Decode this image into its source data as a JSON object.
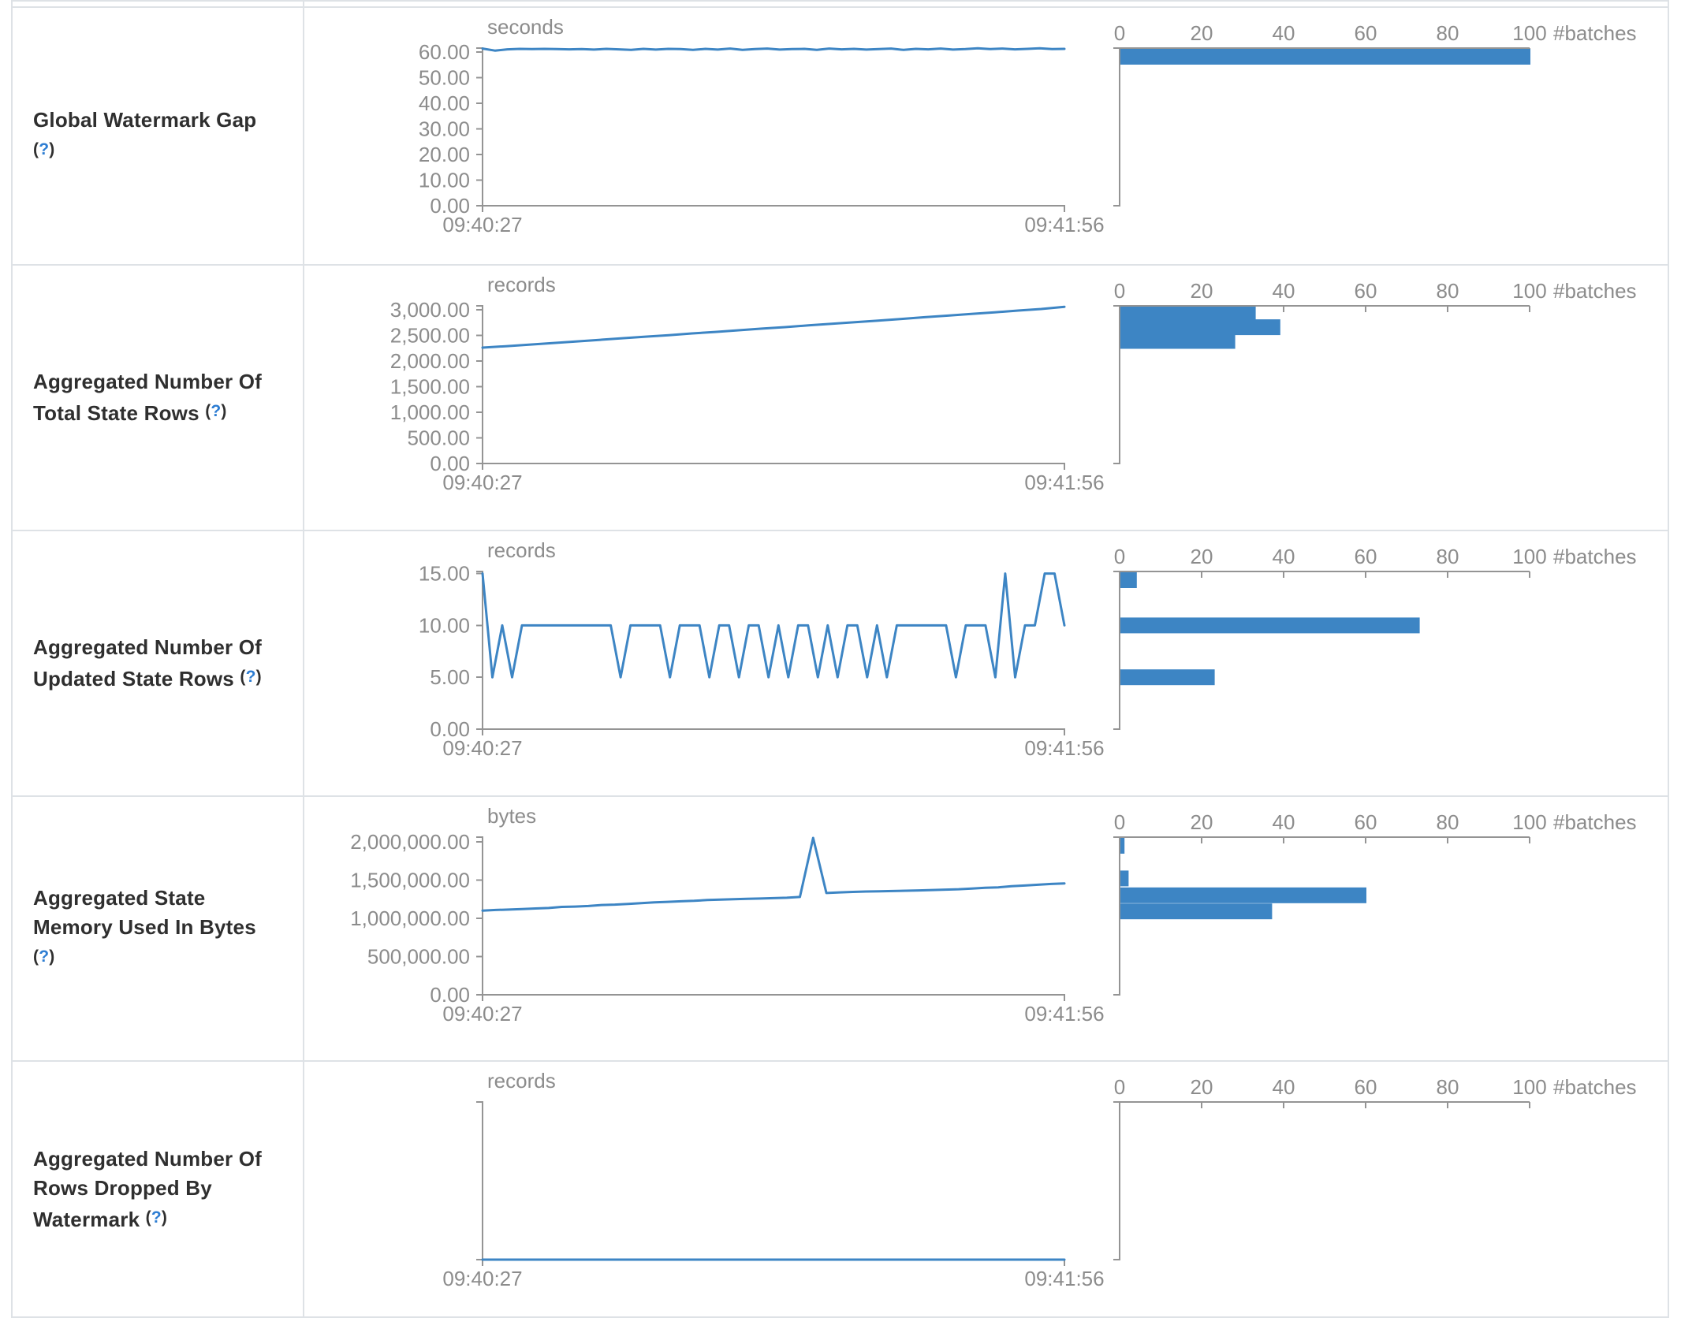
{
  "ui": {
    "help_open": "(",
    "help_q": "?",
    "help_close": ")"
  },
  "theme": {
    "line_color": "#3d85c4",
    "bar_color": "#3d85c4",
    "axis_color": "#949494",
    "chart_text_color": "#8c8c8c",
    "border_color": "#dee2e6",
    "label_color": "#2f2f2f",
    "help_blue": "#2d7dd2"
  },
  "rows": [
    {
      "label": "Global Watermark Gap"
    },
    {
      "label": "Aggregated Number Of Total State Rows"
    },
    {
      "label": "Aggregated Number Of Updated State Rows"
    },
    {
      "label": "Aggregated State Memory Used In Bytes"
    },
    {
      "label": "Aggregated Number Of Rows Dropped By Watermark"
    }
  ],
  "chart_data": [
    {
      "type": "line",
      "title": "Global Watermark Gap",
      "unit": "seconds",
      "x_start": "09:40:27",
      "x_end": "09:41:56",
      "ymax": 61.6,
      "yticks": [
        {
          "v": 60,
          "label": "60.00"
        },
        {
          "v": 50,
          "label": "50.00"
        },
        {
          "v": 40,
          "label": "40.00"
        },
        {
          "v": 30,
          "label": "30.00"
        },
        {
          "v": 20,
          "label": "20.00"
        },
        {
          "v": 10,
          "label": "10.00"
        },
        {
          "v": 0,
          "label": "0.00"
        }
      ],
      "line": [
        61.4,
        60.6,
        61.1,
        61.3,
        61.2,
        61.3,
        61.2,
        61.1,
        61.2,
        61.0,
        61.3,
        61.1,
        60.9,
        61.3,
        61.0,
        61.3,
        61.2,
        60.9,
        61.3,
        61.0,
        61.4,
        60.9,
        61.2,
        61.4,
        61.0,
        61.2,
        61.3,
        60.9,
        61.4,
        61.1,
        61.3,
        61.0,
        61.2,
        61.4,
        60.9,
        61.3,
        61.1,
        61.4,
        61.0,
        61.2,
        61.5,
        61.2,
        61.4,
        61.1,
        61.3,
        61.5,
        61.2,
        61.3
      ],
      "hist_axis": {
        "min": 0,
        "max": 100,
        "ticks": [
          0,
          20,
          40,
          60,
          80,
          100
        ],
        "label": "#batches"
      },
      "hist": [
        {
          "level": 61.2,
          "count": 100
        }
      ]
    },
    {
      "type": "line",
      "title": "Aggregated Number Of Total State Rows",
      "unit": "records",
      "x_start": "09:40:27",
      "x_end": "09:41:56",
      "ymax": 3077,
      "yticks": [
        {
          "v": 3000,
          "label": "3,000.00"
        },
        {
          "v": 2500,
          "label": "2,500.00"
        },
        {
          "v": 2000,
          "label": "2,000.00"
        },
        {
          "v": 1500,
          "label": "1,500.00"
        },
        {
          "v": 1000,
          "label": "1,000.00"
        },
        {
          "v": 500,
          "label": "500.00"
        },
        {
          "v": 0,
          "label": "0.00"
        }
      ],
      "line": [
        2262,
        2290,
        2318,
        2350,
        2380,
        2412,
        2444,
        2476,
        2505,
        2538,
        2568,
        2600,
        2632,
        2662,
        2695,
        2726,
        2758,
        2790,
        2822,
        2855,
        2886,
        2920,
        2950,
        2984,
        3016,
        3058
      ],
      "hist_axis": {
        "min": 0,
        "max": 100,
        "ticks": [
          0,
          20,
          40,
          60,
          80,
          100
        ],
        "label": "#batches"
      },
      "hist": [
        {
          "level": 2927,
          "count": 33
        },
        {
          "level": 2660,
          "count": 39
        },
        {
          "level": 2393,
          "count": 28
        }
      ]
    },
    {
      "type": "line",
      "title": "Aggregated Number Of Updated State Rows",
      "unit": "records",
      "x_start": "09:40:27",
      "x_end": "09:41:56",
      "ymax": 15.2,
      "yticks": [
        {
          "v": 15,
          "label": "15.00"
        },
        {
          "v": 10,
          "label": "10.00"
        },
        {
          "v": 5,
          "label": "5.00"
        },
        {
          "v": 0,
          "label": "0.00"
        }
      ],
      "line": [
        15,
        5,
        10,
        5,
        10,
        10,
        10,
        10,
        10,
        10,
        10,
        10,
        10,
        10,
        5,
        10,
        10,
        10,
        10,
        5,
        10,
        10,
        10,
        5,
        10,
        10,
        5,
        10,
        10,
        5,
        10,
        5,
        10,
        10,
        5,
        10,
        5,
        10,
        10,
        5,
        10,
        5,
        10,
        10,
        10,
        10,
        10,
        10,
        5,
        10,
        10,
        10,
        5,
        15,
        5,
        10,
        10,
        15,
        15,
        10
      ],
      "hist_axis": {
        "min": 0,
        "max": 100,
        "ticks": [
          0,
          20,
          40,
          60,
          80,
          100
        ],
        "label": "#batches"
      },
      "hist": [
        {
          "level": 15,
          "count": 4
        },
        {
          "level": 10,
          "count": 73
        },
        {
          "level": 5,
          "count": 23
        }
      ]
    },
    {
      "type": "line",
      "title": "Aggregated State Memory Used In Bytes",
      "unit": "bytes",
      "x_start": "09:40:27",
      "x_end": "09:41:56",
      "ymax": 2060000,
      "yticks": [
        {
          "v": 2000000,
          "label": "2,000,000.00"
        },
        {
          "v": 1500000,
          "label": "1,500,000.00"
        },
        {
          "v": 1000000,
          "label": "1,000,000.00"
        },
        {
          "v": 500000,
          "label": "500,000.00"
        },
        {
          "v": 0,
          "label": "0.00"
        }
      ],
      "line": [
        1100000,
        1108000,
        1113000,
        1120000,
        1128000,
        1134000,
        1148000,
        1153000,
        1160000,
        1173000,
        1178000,
        1188000,
        1198000,
        1208000,
        1214000,
        1222000,
        1228000,
        1238000,
        1243000,
        1248000,
        1253000,
        1258000,
        1263000,
        1268000,
        1278000,
        2050000,
        1330000,
        1338000,
        1344000,
        1349000,
        1351000,
        1355000,
        1360000,
        1364000,
        1369000,
        1374000,
        1379000,
        1388000,
        1398000,
        1404000,
        1418000,
        1428000,
        1438000,
        1448000,
        1455000
      ],
      "hist_axis": {
        "min": 0,
        "max": 100,
        "ticks": [
          0,
          20,
          40,
          60,
          80,
          100
        ],
        "label": "#batches"
      },
      "hist": [
        {
          "level": 2050000,
          "count": 1
        },
        {
          "level": 1520000,
          "count": 2
        },
        {
          "level": 1300000,
          "count": 60
        },
        {
          "level": 1090000,
          "count": 37
        }
      ]
    },
    {
      "type": "line",
      "title": "Aggregated Number Of Rows Dropped By Watermark",
      "unit": "records",
      "x_start": "09:40:27",
      "x_end": "09:41:56",
      "ymax": 1,
      "yticks": [],
      "line": [
        0,
        0,
        0
      ],
      "hist_axis": {
        "min": 0,
        "max": 100,
        "ticks": [
          0,
          20,
          40,
          60,
          80,
          100
        ],
        "label": "#batches"
      },
      "hist": []
    }
  ]
}
